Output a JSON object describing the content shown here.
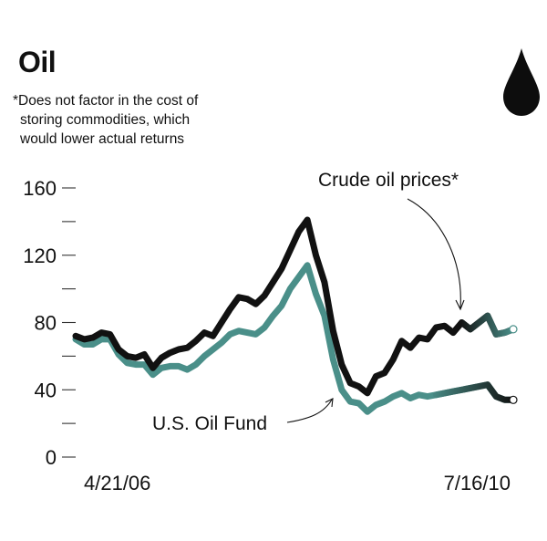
{
  "title": "Oil",
  "footnote": {
    "line1": "*Does not factor in the cost of",
    "line2": "storing commodities, which",
    "line3": "would lower actual returns"
  },
  "icon": "oil-drop-icon",
  "colors": {
    "crude": "#111111",
    "fund": "#4a8f89",
    "text": "#111111"
  },
  "chart_data": {
    "type": "line",
    "x": [
      "2006-04-21",
      "2006-05",
      "2006-06",
      "2006-07",
      "2006-08",
      "2006-09",
      "2006-10",
      "2006-11",
      "2006-12",
      "2007-01",
      "2007-02",
      "2007-03",
      "2007-04",
      "2007-05",
      "2007-06",
      "2007-07",
      "2007-08",
      "2007-09",
      "2007-10",
      "2007-11",
      "2007-12",
      "2008-01",
      "2008-02",
      "2008-03",
      "2008-04",
      "2008-05",
      "2008-06",
      "2008-07",
      "2008-08",
      "2008-09",
      "2008-10",
      "2008-11",
      "2008-12",
      "2009-01",
      "2009-02",
      "2009-03",
      "2009-04",
      "2009-05",
      "2009-06",
      "2009-07",
      "2009-08",
      "2009-09",
      "2009-10",
      "2009-11",
      "2009-12",
      "2010-01",
      "2010-02",
      "2010-03",
      "2010-04",
      "2010-05",
      "2010-06",
      "2010-07-16"
    ],
    "series": [
      {
        "name": "Crude oil prices*",
        "values": [
          72,
          70,
          71,
          74,
          73,
          64,
          60,
          59,
          61,
          53,
          59,
          62,
          64,
          65,
          69,
          74,
          72,
          80,
          88,
          95,
          94,
          91,
          96,
          104,
          112,
          123,
          134,
          141,
          120,
          104,
          75,
          55,
          44,
          42,
          38,
          48,
          50,
          58,
          69,
          65,
          71,
          70,
          77,
          78,
          74,
          80,
          76,
          80,
          84,
          73,
          74,
          76
        ]
      },
      {
        "name": "U.S. Oil Fund",
        "values": [
          70,
          67,
          67,
          70,
          70,
          61,
          56,
          55,
          55,
          49,
          53,
          54,
          54,
          52,
          55,
          60,
          64,
          68,
          73,
          75,
          74,
          73,
          77,
          84,
          90,
          100,
          107,
          114,
          97,
          84,
          58,
          40,
          33,
          32,
          27,
          31,
          33,
          36,
          38,
          35,
          37,
          36,
          37,
          38,
          39,
          40,
          41,
          42,
          43,
          36,
          34,
          34
        ]
      }
    ],
    "yticks": [
      "160",
      "120",
      "80",
      "40",
      "0"
    ],
    "ylim": [
      0,
      160
    ],
    "xtick_labels": [
      "4/21/06",
      "7/16/10"
    ],
    "annotations": {
      "crude": "Crude oil prices*",
      "fund": "U.S. Oil Fund"
    },
    "grid": false
  }
}
